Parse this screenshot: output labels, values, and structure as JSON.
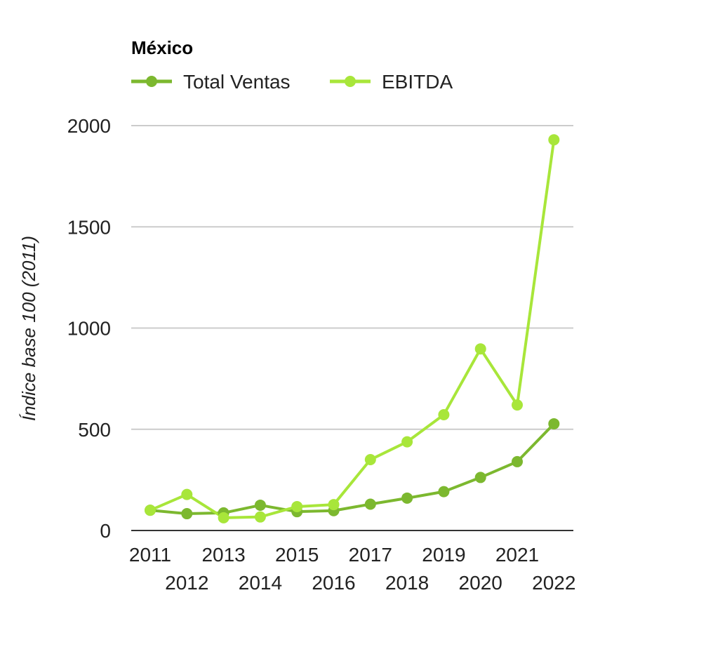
{
  "chart_data": {
    "type": "line",
    "title": "México",
    "xlabel": "",
    "ylabel": "Índice base 100 (2011)",
    "categories": [
      "2011",
      "2012",
      "2013",
      "2014",
      "2015",
      "2016",
      "2017",
      "2018",
      "2019",
      "2020",
      "2021",
      "2022"
    ],
    "ylim": [
      0,
      2000
    ],
    "yticks": [
      0,
      500,
      1000,
      1500,
      2000
    ],
    "grid": true,
    "legend_position": "top-left",
    "series": [
      {
        "name": "Total Ventas",
        "color": "#7cb82f",
        "values": [
          100,
          83,
          87,
          125,
          93,
          98,
          130,
          160,
          192,
          262,
          340,
          527
        ]
      },
      {
        "name": "EBITDA",
        "color": "#a8e63a",
        "values": [
          100,
          178,
          63,
          67,
          118,
          128,
          350,
          438,
          572,
          897,
          620,
          1930
        ]
      }
    ]
  }
}
